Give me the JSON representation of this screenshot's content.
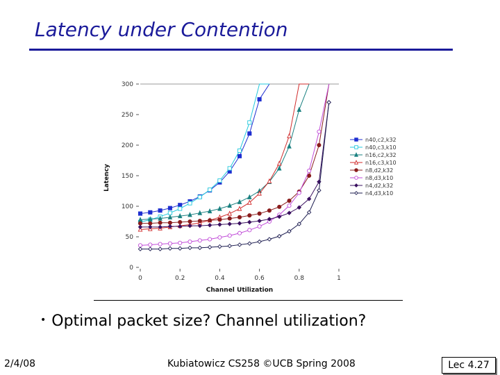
{
  "slide": {
    "title": "Latency under Contention",
    "bullet": "Optimal packet size? Channel utilization?",
    "bullet_symbol": "•",
    "date": "2/4/08",
    "footer": "Kubiatowicz CS258 ©UCB Spring 2008",
    "lecture": "Lec 4.27",
    "title_color": "#1a1a9a"
  },
  "chart_data": {
    "type": "line",
    "xlabel": "Channel Utilization",
    "ylabel": "Latency",
    "xlim": [
      0,
      1
    ],
    "ylim": [
      0,
      300
    ],
    "x_ticks": [
      "0",
      "0.2",
      "0.4",
      "0.6",
      "0.8",
      "1"
    ],
    "y_ticks": [
      "0",
      "50",
      "100",
      "150",
      "200",
      "250",
      "300"
    ],
    "legend_position": "right",
    "series": [
      {
        "name": "n40,c2,k32",
        "color": "#1f2fd0",
        "marker": "square-filled",
        "x": [
          0,
          0.05,
          0.1,
          0.15,
          0.2,
          0.25,
          0.3,
          0.35,
          0.4,
          0.45,
          0.5,
          0.55,
          0.6,
          0.65
        ],
        "y": [
          88,
          90,
          93,
          97,
          102,
          108,
          116,
          126,
          139,
          157,
          182,
          219,
          275,
          300
        ]
      },
      {
        "name": "n40,c3,k10",
        "color": "#22c8dc",
        "marker": "square-open",
        "x": [
          0,
          0.05,
          0.1,
          0.15,
          0.2,
          0.25,
          0.3,
          0.35,
          0.4,
          0.45,
          0.5,
          0.55,
          0.6,
          0.65
        ],
        "y": [
          74,
          78,
          83,
          89,
          96,
          105,
          115,
          127,
          142,
          162,
          191,
          237,
          300,
          300
        ]
      },
      {
        "name": "n16,c2,k32",
        "color": "#1a8080",
        "marker": "triangle-filled",
        "x": [
          0,
          0.05,
          0.1,
          0.15,
          0.2,
          0.25,
          0.3,
          0.35,
          0.4,
          0.45,
          0.5,
          0.55,
          0.6,
          0.65,
          0.7,
          0.75,
          0.8,
          0.85
        ],
        "y": [
          78,
          79,
          80,
          82,
          84,
          86,
          89,
          92,
          96,
          101,
          107,
          115,
          125,
          140,
          162,
          198,
          258,
          300
        ]
      },
      {
        "name": "n16,c3,k10",
        "color": "#d02a2a",
        "marker": "triangle-open",
        "x": [
          0,
          0.05,
          0.1,
          0.15,
          0.2,
          0.25,
          0.3,
          0.35,
          0.4,
          0.45,
          0.5,
          0.55,
          0.6,
          0.65,
          0.7,
          0.75,
          0.8,
          0.85
        ],
        "y": [
          62,
          63,
          64,
          66,
          68,
          70,
          73,
          77,
          82,
          88,
          96,
          106,
          121,
          141,
          170,
          215,
          300,
          300
        ]
      },
      {
        "name": "n8,d2,k32",
        "color": "#8a1c1c",
        "marker": "circle-filled",
        "x": [
          0,
          0.05,
          0.1,
          0.15,
          0.2,
          0.25,
          0.3,
          0.35,
          0.4,
          0.45,
          0.5,
          0.55,
          0.6,
          0.65,
          0.7,
          0.75,
          0.8,
          0.85,
          0.9,
          0.95
        ],
        "y": [
          72,
          72,
          73,
          73,
          74,
          75,
          76,
          77,
          78,
          80,
          82,
          85,
          88,
          93,
          99,
          109,
          124,
          150,
          200,
          300
        ]
      },
      {
        "name": "n8,d3,k10",
        "color": "#c04ad8",
        "marker": "circle-open",
        "x": [
          0,
          0.05,
          0.1,
          0.15,
          0.2,
          0.25,
          0.3,
          0.35,
          0.4,
          0.45,
          0.5,
          0.55,
          0.6,
          0.65,
          0.7,
          0.75,
          0.8,
          0.85,
          0.9,
          0.95
        ],
        "y": [
          36,
          37,
          38,
          39,
          40,
          42,
          44,
          46,
          49,
          52,
          56,
          61,
          67,
          75,
          86,
          101,
          122,
          158,
          222,
          300
        ]
      },
      {
        "name": "n4,d2,k32",
        "color": "#3a1060",
        "marker": "diamond-filled",
        "x": [
          0,
          0.05,
          0.1,
          0.15,
          0.2,
          0.25,
          0.3,
          0.35,
          0.4,
          0.45,
          0.5,
          0.55,
          0.6,
          0.65,
          0.7,
          0.75,
          0.8,
          0.85,
          0.9,
          0.95
        ],
        "y": [
          66,
          66,
          66,
          67,
          67,
          68,
          68,
          69,
          70,
          71,
          72,
          74,
          76,
          79,
          83,
          89,
          98,
          112,
          140,
          270
        ]
      },
      {
        "name": "n4,d3,k10",
        "color": "#1c1c50",
        "marker": "diamond-open",
        "x": [
          0,
          0.05,
          0.1,
          0.15,
          0.2,
          0.25,
          0.3,
          0.35,
          0.4,
          0.45,
          0.5,
          0.55,
          0.6,
          0.65,
          0.7,
          0.75,
          0.8,
          0.85,
          0.9,
          0.95
        ],
        "y": [
          30,
          30,
          30,
          31,
          31,
          32,
          32,
          33,
          34,
          35,
          37,
          39,
          42,
          46,
          51,
          59,
          71,
          90,
          126,
          270
        ]
      }
    ]
  }
}
